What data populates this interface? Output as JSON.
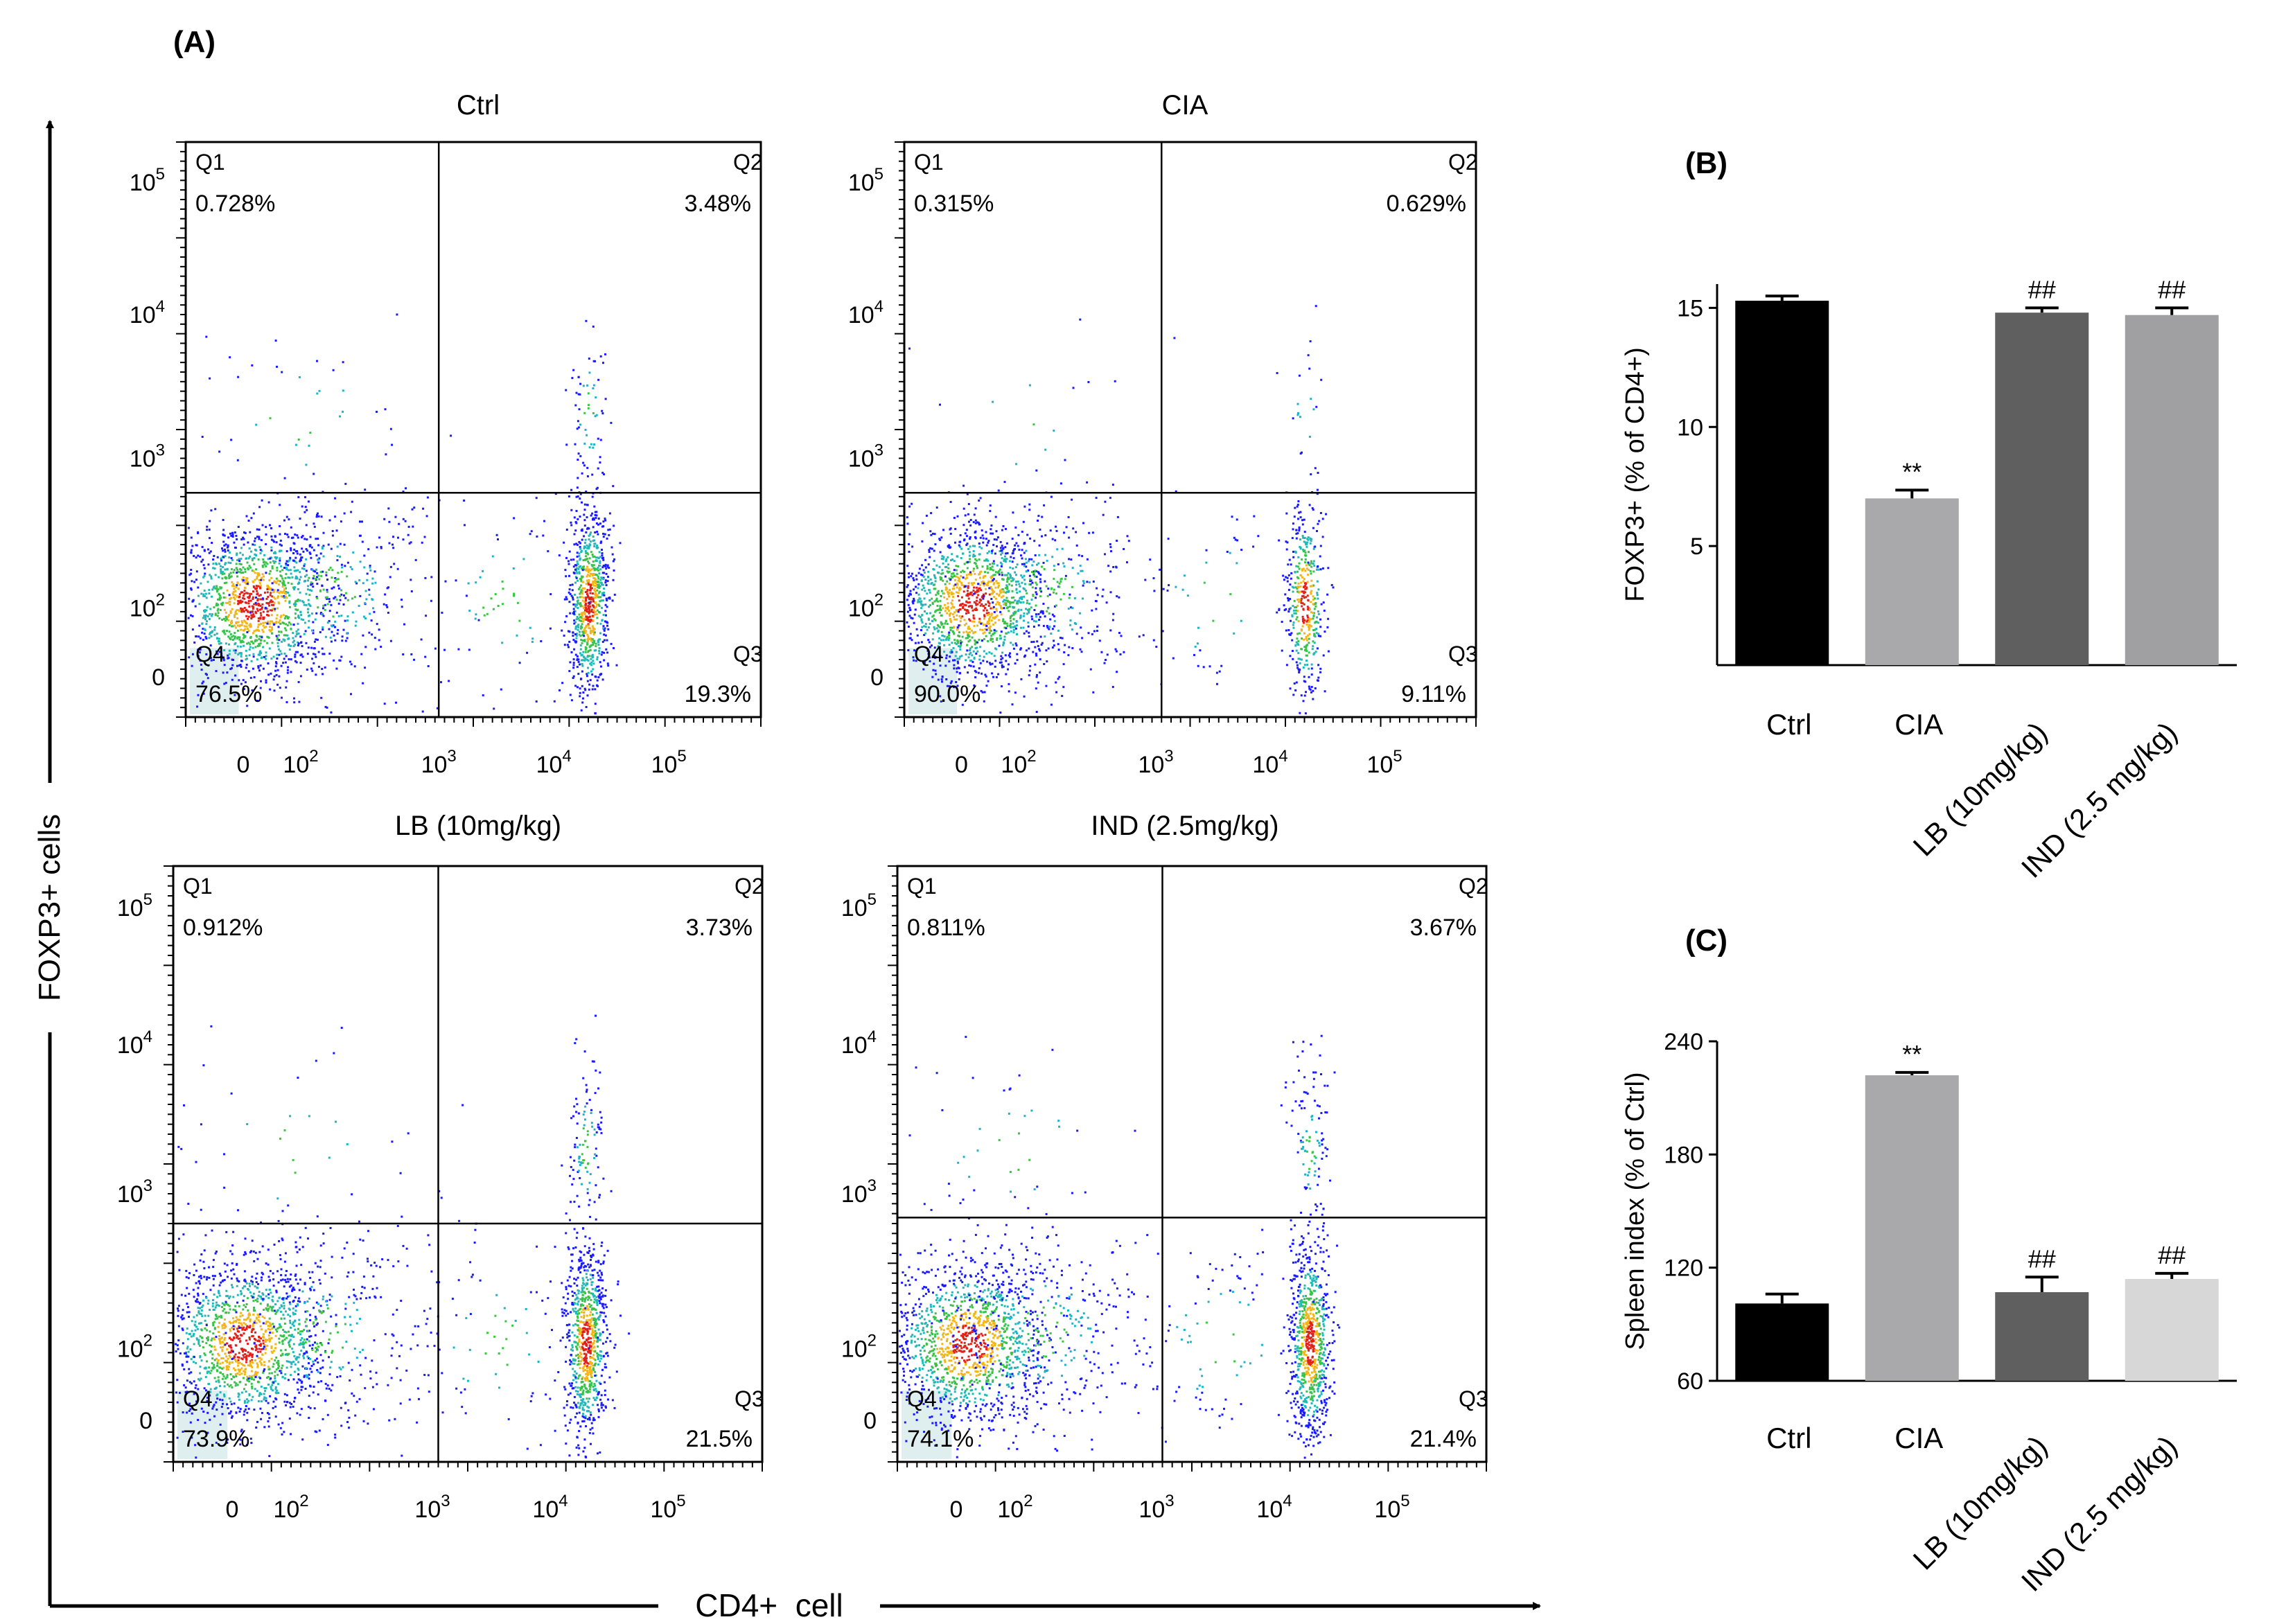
{
  "figure": {
    "panel_labels": {
      "a": "(A)",
      "b": "(B)",
      "c": "(C)"
    },
    "y_axis_title": "FOXP3+ cells",
    "x_axis_title": "CD4+  cell"
  },
  "flow_axes": {
    "x_ticks": [
      {
        "base": "0",
        "exp": ""
      },
      {
        "base": "10",
        "exp": "2"
      },
      {
        "base": "10",
        "exp": "3"
      },
      {
        "base": "10",
        "exp": "4"
      },
      {
        "base": "10",
        "exp": "5"
      }
    ],
    "y_ticks": [
      {
        "base": "0",
        "exp": ""
      },
      {
        "base": "10",
        "exp": "2"
      },
      {
        "base": "10",
        "exp": "3"
      },
      {
        "base": "10",
        "exp": "4"
      },
      {
        "base": "10",
        "exp": "5"
      }
    ]
  },
  "chart_data": [
    {
      "type": "scatter",
      "title": "Ctrl",
      "xlabel": "CD4+  cell",
      "ylabel": "FOXP3+ cells",
      "quadrants": [
        {
          "name": "Q1",
          "pct": "0.728%"
        },
        {
          "name": "Q2",
          "pct": "3.48%"
        },
        {
          "name": "Q3",
          "pct": "19.3%"
        },
        {
          "name": "Q4",
          "pct": "76.5%"
        }
      ]
    },
    {
      "type": "scatter",
      "title": "CIA",
      "xlabel": "CD4+  cell",
      "ylabel": "FOXP3+ cells",
      "quadrants": [
        {
          "name": "Q1",
          "pct": "0.315%"
        },
        {
          "name": "Q2",
          "pct": "0.629%"
        },
        {
          "name": "Q3",
          "pct": "9.11%"
        },
        {
          "name": "Q4",
          "pct": "90.0%"
        }
      ]
    },
    {
      "type": "scatter",
      "title": "LB (10mg/kg)",
      "xlabel": "CD4+  cell",
      "ylabel": "FOXP3+ cells",
      "quadrants": [
        {
          "name": "Q1",
          "pct": "0.912%"
        },
        {
          "name": "Q2",
          "pct": "3.73%"
        },
        {
          "name": "Q3",
          "pct": "21.5%"
        },
        {
          "name": "Q4",
          "pct": "73.9%"
        }
      ]
    },
    {
      "type": "scatter",
      "title": "IND (2.5mg/kg)",
      "xlabel": "CD4+  cell",
      "ylabel": "FOXP3+ cells",
      "quadrants": [
        {
          "name": "Q1",
          "pct": "0.811%"
        },
        {
          "name": "Q2",
          "pct": "3.67%"
        },
        {
          "name": "Q3",
          "pct": "21.4%"
        },
        {
          "name": "Q4",
          "pct": "74.1%"
        }
      ]
    },
    {
      "type": "bar",
      "title": "(B)",
      "ylabel": "FOXP3+ (% of CD4+)",
      "ylim": [
        0,
        16
      ],
      "yticks": [
        5,
        10,
        15
      ],
      "categories": [
        "Ctrl",
        "CIA",
        "LB (10mg/kg)",
        "IND (2.5 mg/kg)"
      ],
      "values": [
        15.3,
        7.0,
        14.8,
        14.7
      ],
      "errors": [
        0.2,
        0.35,
        0.2,
        0.3
      ],
      "annotations": [
        "",
        "**",
        "##",
        "##"
      ],
      "colors": [
        "#000000",
        "#a9a9ab",
        "#5f5f5f",
        "#a0a0a2"
      ]
    },
    {
      "type": "bar",
      "title": "(C)",
      "ylabel": "Spleen index (% of Ctrl)",
      "ylim": [
        60,
        240
      ],
      "yticks": [
        60,
        120,
        180,
        240
      ],
      "categories": [
        "Ctrl",
        "CIA",
        "LB (10mg/kg)",
        "IND (2.5 mg/kg)"
      ],
      "values": [
        101,
        222,
        107,
        114
      ],
      "errors": [
        5,
        1.5,
        8,
        3
      ],
      "annotations": [
        "",
        "**",
        "##",
        "##"
      ],
      "colors": [
        "#000000",
        "#a9a9ab",
        "#5f5f5f",
        "#d7d7d7"
      ]
    }
  ]
}
